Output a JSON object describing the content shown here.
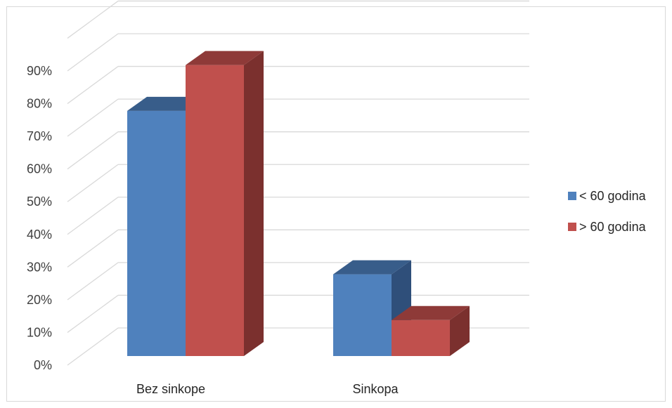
{
  "chart_data": {
    "type": "bar",
    "title": "",
    "xlabel": "",
    "ylabel": "",
    "categories": [
      "Bez sinkope",
      "Sinkopa"
    ],
    "series": [
      {
        "name": "< 60 godina",
        "values": [
          0.75,
          0.25
        ],
        "color": "#4F81BD",
        "top_color": "#385D8A",
        "side_color": "#2F4F7A"
      },
      {
        "name": "> 60 godina",
        "values": [
          0.89,
          0.11
        ],
        "color": "#C0504D",
        "top_color": "#8E3A38",
        "side_color": "#7B302E"
      }
    ],
    "ylim": [
      0,
      0.9
    ],
    "y_ticks": [
      0,
      0.1,
      0.2,
      0.3,
      0.4,
      0.5,
      0.6,
      0.7,
      0.8,
      0.9
    ],
    "y_tick_labels": [
      "0%",
      "10%",
      "20%",
      "30%",
      "40%",
      "50%",
      "60%",
      "70%",
      "80%",
      "90%"
    ],
    "grid": true,
    "legend_position": "right",
    "style": "3d-clustered-column"
  }
}
